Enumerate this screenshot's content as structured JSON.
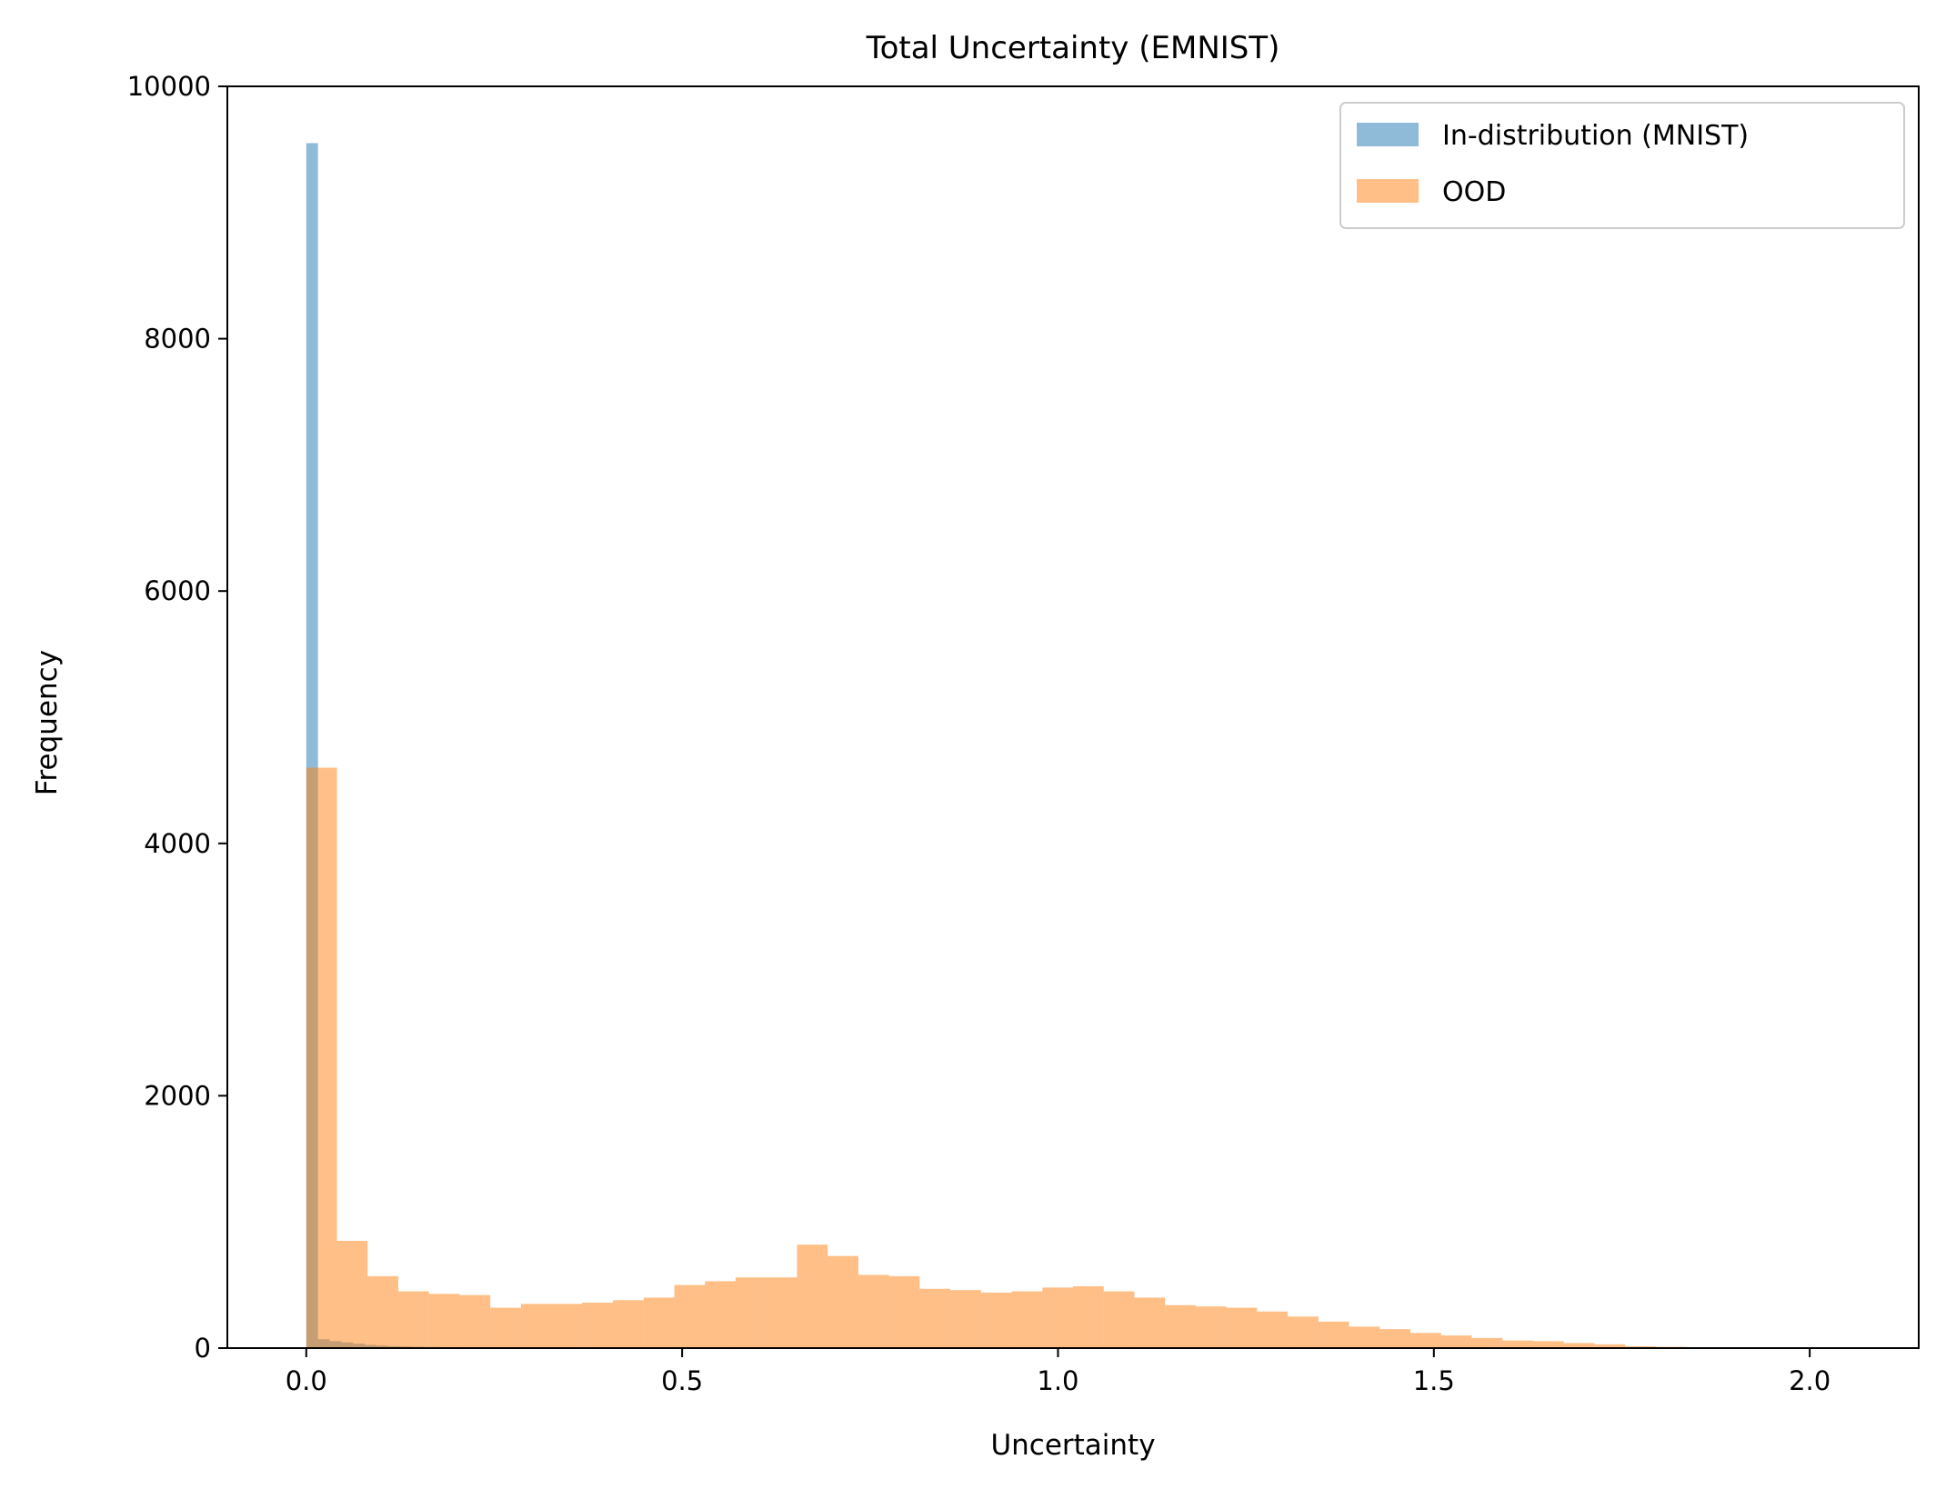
{
  "chart_data": {
    "type": "bar",
    "title": "Total Uncertainty (EMNIST)",
    "xlabel": "Uncertainty",
    "ylabel": "Frequency",
    "xlim": [
      -0.105,
      2.145
    ],
    "ylim": [
      0,
      10000
    ],
    "xticks": [
      0.0,
      0.5,
      1.0,
      1.5,
      2.0
    ],
    "xtick_labels": [
      "0.0",
      "0.5",
      "1.0",
      "1.5",
      "2.0"
    ],
    "yticks": [
      0,
      2000,
      4000,
      6000,
      8000,
      10000
    ],
    "ytick_labels": [
      "0",
      "2000",
      "4000",
      "6000",
      "8000",
      "10000"
    ],
    "grid": false,
    "legend_position": "top-right",
    "series": [
      {
        "name": "In-distribution (MNIST)",
        "color": "#1f77b4",
        "opacity": 0.5,
        "bin_start": 0.0,
        "bin_width": 0.0156,
        "values": [
          9550,
          70,
          55,
          45,
          35,
          25,
          20,
          15,
          12,
          10,
          8,
          7,
          6,
          5,
          5,
          4,
          4,
          3,
          3,
          3,
          2,
          2,
          2,
          2,
          2,
          2,
          2,
          1,
          1,
          1,
          1,
          1,
          1,
          1,
          1,
          1,
          1,
          1,
          1,
          1
        ]
      },
      {
        "name": "OOD",
        "color": "#ff7f0e",
        "opacity": 0.5,
        "bin_start": 0.0,
        "bin_width": 0.0408,
        "values": [
          4600,
          850,
          570,
          450,
          430,
          420,
          320,
          350,
          350,
          360,
          380,
          400,
          500,
          530,
          560,
          560,
          820,
          730,
          580,
          570,
          470,
          460,
          440,
          450,
          480,
          490,
          450,
          400,
          340,
          330,
          320,
          290,
          250,
          210,
          170,
          150,
          120,
          100,
          80,
          60,
          55,
          40,
          30,
          15,
          10,
          5,
          3,
          2,
          1,
          1
        ]
      }
    ]
  }
}
